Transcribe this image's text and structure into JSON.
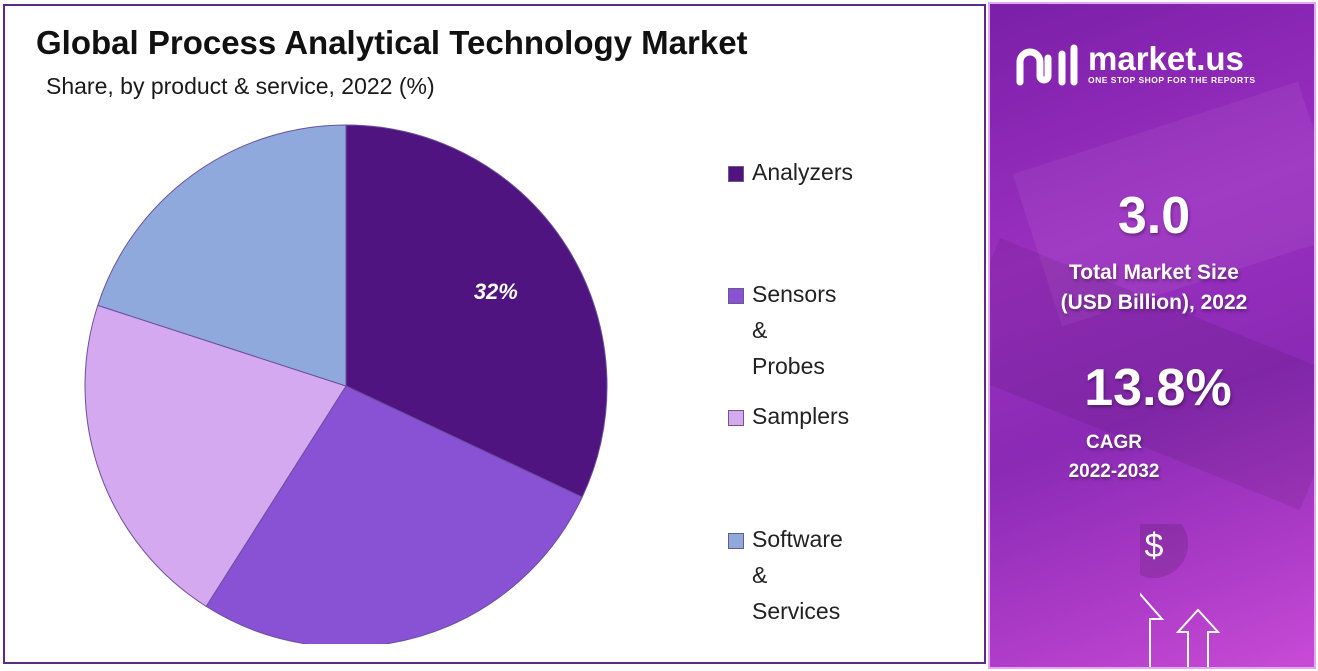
{
  "title": "Global Process Analytical Technology Market",
  "subtitle": "Share, by product & service, 2022 (%)",
  "chart_data": {
    "type": "pie",
    "start_angle_deg": 0,
    "direction": "clockwise",
    "slices": [
      {
        "label": "Analyzers",
        "value": 32,
        "color": "#4f1480",
        "data_label": "32%"
      },
      {
        "label": "Sensors & Probes",
        "value": 27,
        "color": "#8951d4",
        "data_label": ""
      },
      {
        "label": "Samplers",
        "value": 21,
        "color": "#d4a9ef",
        "data_label": ""
      },
      {
        "label": "Software & Services",
        "value": 20,
        "color": "#8fa9dd",
        "data_label": ""
      }
    ],
    "legend_position": "right"
  },
  "legend": [
    {
      "label": "Analyzers",
      "color": "#4f1480"
    },
    {
      "label": "Sensors & Probes",
      "color": "#8951d4"
    },
    {
      "label": "Samplers",
      "color": "#d4a9ef"
    },
    {
      "label": "Software &\nServices",
      "color": "#8fa9dd"
    }
  ],
  "brand": {
    "name": "market.us",
    "tagline": "ONE STOP SHOP FOR THE REPORTS"
  },
  "stats": {
    "market_size_value": "3.0",
    "market_size_label": "Total Market Size\n(USD Billion), 2022",
    "cagr_value": "13.8%",
    "cagr_label": "CAGR\n2022-2032"
  },
  "icons": {
    "currency": "$"
  }
}
